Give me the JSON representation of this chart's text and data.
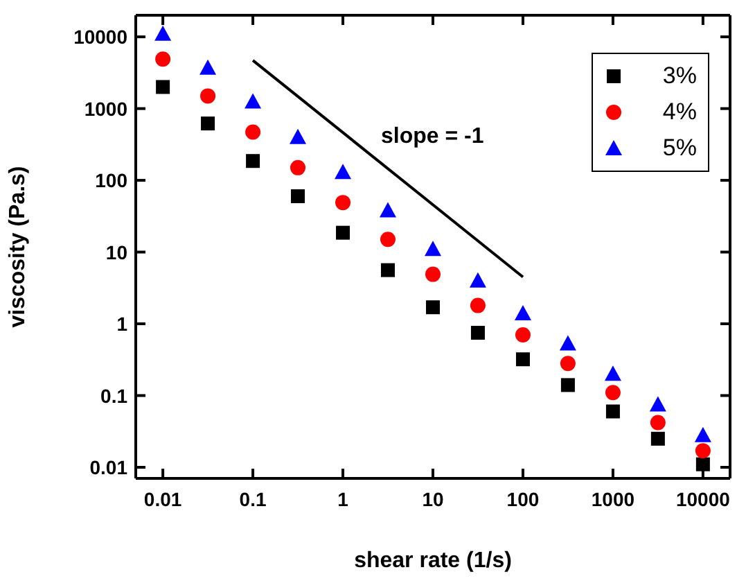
{
  "chart_data": {
    "type": "scatter",
    "xlabel": "shear rate (1/s)",
    "ylabel": "viscosity (Pa.s)",
    "log": "xy",
    "legend": "top right",
    "xlim": [
      0.005,
      20000
    ],
    "ylim": [
      0.007,
      20000
    ],
    "xticks": [
      0.01,
      0.1,
      1,
      10,
      100,
      1000,
      10000
    ],
    "yticks": [
      0.01,
      0.1,
      1,
      10,
      100,
      1000,
      10000
    ],
    "x": [
      0.01,
      0.0316,
      0.1,
      0.316,
      1,
      3.16,
      10,
      31.6,
      100,
      316,
      1000,
      3160,
      10000
    ],
    "series": [
      {
        "name": "3%",
        "color": "#000000",
        "marker": "square",
        "values": [
          2000,
          620,
          186,
          60,
          18.6,
          5.6,
          1.7,
          0.75,
          0.32,
          0.14,
          0.06,
          0.025,
          0.011
        ]
      },
      {
        "name": "4%",
        "color": "#ff0000",
        "marker": "circle",
        "values": [
          4900,
          1500,
          470,
          150,
          49,
          15,
          4.9,
          1.8,
          0.7,
          0.28,
          0.11,
          0.042,
          0.017
        ]
      },
      {
        "name": "5%",
        "color": "#0000ff",
        "marker": "triangle",
        "values": [
          11000,
          3700,
          1250,
          400,
          130,
          38,
          11,
          4,
          1.4,
          0.53,
          0.2,
          0.075,
          0.028
        ]
      },
      {
        "type": "line",
        "color": "#000000",
        "marker": "none",
        "x": [
          0.1,
          100
        ],
        "values": [
          4700,
          4.5
        ]
      }
    ],
    "annotations": [
      "slope = -1"
    ]
  }
}
